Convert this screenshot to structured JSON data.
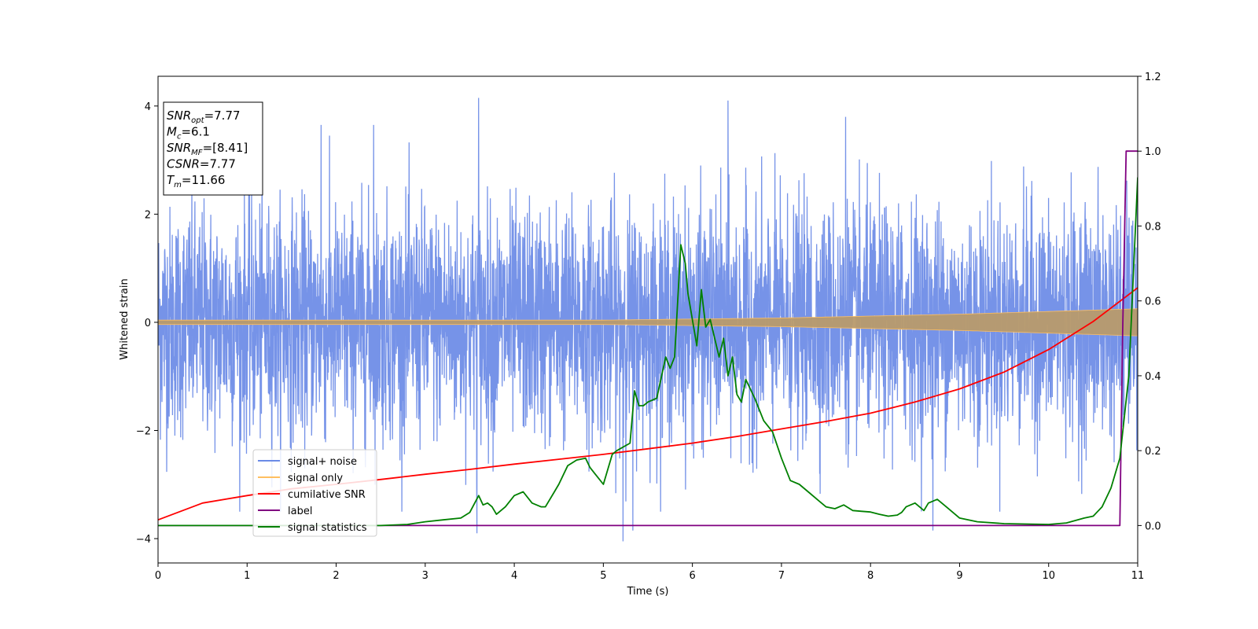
{
  "chart_data": {
    "type": "line",
    "xlabel": "Time (s)",
    "ylabel": "Whitened strain",
    "xlim": [
      0,
      11
    ],
    "ylim": [
      -4.45,
      4.55
    ],
    "y2lim": [
      -0.1,
      1.2
    ],
    "x_ticks": [
      "0",
      "1",
      "2",
      "3",
      "4",
      "5",
      "6",
      "7",
      "8",
      "9",
      "10",
      "11"
    ],
    "y_ticks": [
      "−4",
      "−2",
      "0",
      "2",
      "4"
    ],
    "y2_ticks": [
      "0.0",
      "0.2",
      "0.4",
      "0.6",
      "0.8",
      "1.0",
      "1.2"
    ],
    "legend_position": "lower-left",
    "grid": false,
    "annotation": [
      {
        "base": "SNR",
        "sub": "opt",
        "value": "=7.77"
      },
      {
        "base": "M",
        "sub": "c",
        "value": "=6.1"
      },
      {
        "base": "SNR",
        "sub": "MF",
        "value": "=[8.41]"
      },
      {
        "base": "CSNR",
        "sub": "",
        "value": "=7.77"
      },
      {
        "base": "T",
        "sub": "m",
        "value": "=11.66"
      }
    ],
    "series": [
      {
        "name": "signal+ noise",
        "axis": "left",
        "color": "#6a8ae6",
        "kind": "noisy-band",
        "envelope_typical": 1.7,
        "peaks": [
          [
            3.6,
            4.15
          ],
          [
            3.58,
            -3.9
          ],
          [
            5.22,
            -4.05
          ],
          [
            5.33,
            -3.85
          ],
          [
            1.83,
            3.65
          ],
          [
            2.42,
            3.65
          ],
          [
            6.4,
            4.1
          ],
          [
            8.7,
            -3.85
          ],
          [
            7.72,
            3.8
          ]
        ]
      },
      {
        "name": "signal only",
        "axis": "left",
        "color": "#ffbf60",
        "kind": "chirp-band",
        "amplitude": [
          [
            0,
            0.04
          ],
          [
            5,
            0.04
          ],
          [
            7,
            0.08
          ],
          [
            9,
            0.15
          ],
          [
            10,
            0.2
          ],
          [
            11,
            0.25
          ]
        ]
      },
      {
        "name": "cumilative SNR",
        "axis": "right",
        "color": "#ff0000",
        "x": [
          0,
          0.5,
          1,
          1.5,
          2,
          2.5,
          3,
          3.5,
          4,
          4.5,
          5,
          5.5,
          6,
          6.5,
          7,
          7.5,
          8,
          8.5,
          9,
          9.5,
          10,
          10.5,
          11
        ],
        "y": [
          0.015,
          0.06,
          0.08,
          0.098,
          0.11,
          0.123,
          0.137,
          0.15,
          0.164,
          0.177,
          0.19,
          0.205,
          0.22,
          0.238,
          0.258,
          0.278,
          0.3,
          0.33,
          0.365,
          0.41,
          0.47,
          0.545,
          0.635
        ]
      },
      {
        "name": "label",
        "axis": "right",
        "color": "#800080",
        "x": [
          0,
          10.8,
          10.83,
          10.87,
          11
        ],
        "y": [
          0,
          0,
          0.5,
          1.0,
          1.0
        ]
      },
      {
        "name": "signal statistics",
        "axis": "right",
        "color": "#008000",
        "x": [
          0,
          0.5,
          1,
          1.5,
          2,
          2.5,
          2.8,
          3.0,
          3.2,
          3.4,
          3.5,
          3.6,
          3.65,
          3.7,
          3.75,
          3.8,
          3.9,
          4.0,
          4.1,
          4.2,
          4.3,
          4.35,
          4.45,
          4.5,
          4.6,
          4.7,
          4.8,
          4.85,
          4.9,
          5.0,
          5.1,
          5.15,
          5.3,
          5.35,
          5.4,
          5.45,
          5.5,
          5.6,
          5.7,
          5.75,
          5.8,
          5.87,
          5.92,
          5.95,
          6.0,
          6.05,
          6.1,
          6.15,
          6.2,
          6.3,
          6.35,
          6.4,
          6.45,
          6.5,
          6.55,
          6.6,
          6.7,
          6.8,
          6.9,
          7.0,
          7.1,
          7.2,
          7.3,
          7.4,
          7.5,
          7.6,
          7.7,
          7.8,
          7.9,
          8.0,
          8.1,
          8.2,
          8.3,
          8.35,
          8.4,
          8.5,
          8.6,
          8.65,
          8.75,
          8.85,
          9.0,
          9.2,
          9.5,
          10.0,
          10.2,
          10.4,
          10.5,
          10.6,
          10.7,
          10.8,
          10.9,
          11.0
        ],
        "y": [
          0.0,
          0.0,
          0.0,
          0.0,
          0.0,
          0.0,
          0.003,
          0.01,
          0.015,
          0.02,
          0.035,
          0.08,
          0.055,
          0.06,
          0.05,
          0.03,
          0.05,
          0.08,
          0.09,
          0.06,
          0.05,
          0.05,
          0.09,
          0.11,
          0.16,
          0.175,
          0.18,
          0.155,
          0.14,
          0.11,
          0.19,
          0.2,
          0.22,
          0.36,
          0.32,
          0.32,
          0.33,
          0.34,
          0.45,
          0.42,
          0.45,
          0.75,
          0.7,
          0.62,
          0.55,
          0.48,
          0.63,
          0.53,
          0.55,
          0.45,
          0.5,
          0.4,
          0.45,
          0.35,
          0.33,
          0.39,
          0.34,
          0.28,
          0.25,
          0.18,
          0.12,
          0.11,
          0.09,
          0.07,
          0.05,
          0.045,
          0.055,
          0.04,
          0.038,
          0.036,
          0.03,
          0.025,
          0.028,
          0.035,
          0.05,
          0.06,
          0.04,
          0.06,
          0.07,
          0.05,
          0.02,
          0.01,
          0.005,
          0.003,
          0.007,
          0.02,
          0.025,
          0.05,
          0.1,
          0.18,
          0.4,
          0.93
        ]
      }
    ]
  }
}
